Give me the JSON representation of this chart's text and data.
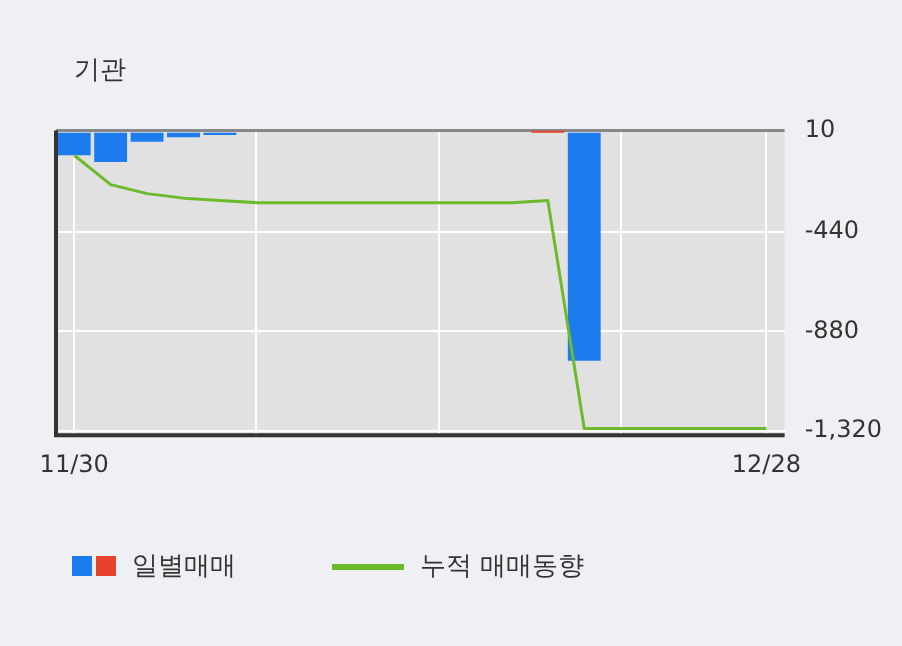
{
  "chart_data": {
    "type": "bar",
    "title": "기관",
    "categories": [
      "11/30",
      null,
      null,
      null,
      null,
      null,
      null,
      null,
      null,
      null,
      null,
      null,
      null,
      null,
      null,
      null,
      null,
      null,
      null,
      "12/28"
    ],
    "series": [
      {
        "name": "일별매매",
        "colors": [
          "#1c7ced",
          "#1c7ced",
          "#1c7ced",
          "#1c7ced",
          "#1c7ced",
          "#1c7ced",
          "#1c7ced",
          "#1c7ced",
          "#1c7ced",
          "#1c7ced",
          "#1c7ced",
          "#1c7ced",
          "#1c7ced",
          "#e8412c",
          "#1c7ced",
          "#1c7ced",
          "#1c7ced",
          "#1c7ced",
          "#1c7ced",
          "#1c7ced"
        ],
        "values": [
          -100,
          -130,
          -40,
          -20,
          -10,
          0,
          0,
          0,
          0,
          0,
          0,
          0,
          0,
          10,
          -1010,
          0,
          0,
          0,
          0,
          0
        ]
      },
      {
        "name": "누적 매매동향",
        "type": "line",
        "color": "#6cbb2c",
        "values": [
          -100,
          -230,
          -270,
          -290,
          -300,
          -310,
          -310,
          -310,
          -310,
          -310,
          -310,
          -310,
          -310,
          -300,
          -1310,
          -1310,
          -1310,
          -1310,
          -1310,
          -1310
        ]
      }
    ],
    "ylim": [
      -1340,
      10
    ],
    "yticks": [
      10,
      -440,
      -880,
      {
        "value": -1320,
        "label": "-1,320"
      }
    ],
    "grid": true,
    "legend": "bottom",
    "marker": "none"
  }
}
